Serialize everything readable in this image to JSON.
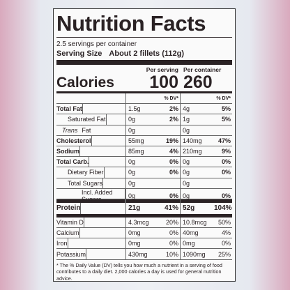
{
  "header": {
    "title": "Nutrition Facts",
    "servings": "2.5 servings per container",
    "serving_size_label": "Serving Size",
    "serving_size": "About 2 fillets (112g)"
  },
  "columns": {
    "per_serving": "Per serving",
    "per_container": "Per container",
    "dv": "% DV*"
  },
  "calories": {
    "label": "Calories",
    "per_serving": "100",
    "per_container": "260"
  },
  "nutrients": [
    {
      "name": "Total Fat",
      "serving_amount": "1.5g",
      "serving_dv": "2%",
      "container_amount": "4g",
      "container_dv": "5%"
    },
    {
      "name": "Saturated Fat",
      "serving_amount": "0g",
      "serving_dv": "2%",
      "container_amount": "1g",
      "container_dv": "5%"
    },
    {
      "name_italic": "Trans",
      "name": "Fat",
      "serving_amount": "0g",
      "container_amount": "0g"
    },
    {
      "name": "Cholesterol",
      "serving_amount": "55mg",
      "serving_dv": "19%",
      "container_amount": "140mg",
      "container_dv": "47%"
    },
    {
      "name": "Sodium",
      "serving_amount": "85mg",
      "serving_dv": "4%",
      "container_amount": "210mg",
      "container_dv": "9%"
    },
    {
      "name": "Total Carb.",
      "serving_amount": "0g",
      "serving_dv": "0%",
      "container_amount": "0g",
      "container_dv": "0%"
    },
    {
      "name": "Dietary Fiber",
      "serving_amount": "0g",
      "serving_dv": "0%",
      "container_amount": "0g",
      "container_dv": "0%"
    },
    {
      "name": "Total Sugars",
      "serving_amount": "0g",
      "container_amount": "0g"
    },
    {
      "name": "Incl. Added Sugars",
      "serving_amount": "0g",
      "serving_dv": "0%",
      "container_amount": "0g",
      "container_dv": "0%"
    },
    {
      "name": "Protein",
      "serving_amount": "21g",
      "serving_dv": "41%",
      "container_amount": "52g",
      "container_dv": "104%"
    },
    {
      "name": "Vitamin D",
      "serving_amount": "4.3mcg",
      "serving_dv": "20%",
      "container_amount": "10.8mcg",
      "container_dv": "50%"
    },
    {
      "name": "Calcium",
      "serving_amount": "0mg",
      "serving_dv": "0%",
      "container_amount": "40mg",
      "container_dv": "4%"
    },
    {
      "name": "Iron",
      "serving_amount": "0mg",
      "serving_dv": "0%",
      "container_amount": "0mg",
      "container_dv": "0%"
    },
    {
      "name": "Potassium",
      "serving_amount": "430mg",
      "serving_dv": "10%",
      "container_amount": "1090mg",
      "container_dv": "25%"
    }
  ],
  "footnote": "* The % Daily Value (DV) tells you how much a nutrient in a serving of food contributes to a daily diet. 2,000 calories a day is used for general nutrition advice."
}
